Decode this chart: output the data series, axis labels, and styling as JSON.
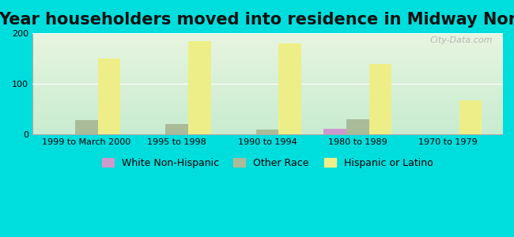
{
  "title": "Year householders moved into residence in Midway North",
  "categories": [
    "1999 to March 2000",
    "1995 to 1998",
    "1990 to 1994",
    "1980 to 1989",
    "1970 to 1979"
  ],
  "series": {
    "White Non-Hispanic": [
      0,
      0,
      0,
      12,
      0
    ],
    "Other Race": [
      28,
      20,
      10,
      30,
      0
    ],
    "Hispanic or Latino": [
      150,
      185,
      180,
      140,
      68
    ]
  },
  "colors": {
    "White Non-Hispanic": "#cc99cc",
    "Other Race": "#aabb99",
    "Hispanic or Latino": "#eeee88"
  },
  "ylim": [
    0,
    200
  ],
  "yticks": [
    0,
    100,
    200
  ],
  "background_color": "#00dddd",
  "watermark": "City-Data.com",
  "bar_width": 0.25,
  "title_fontsize": 15,
  "legend_fontsize": 9,
  "tick_fontsize": 8
}
